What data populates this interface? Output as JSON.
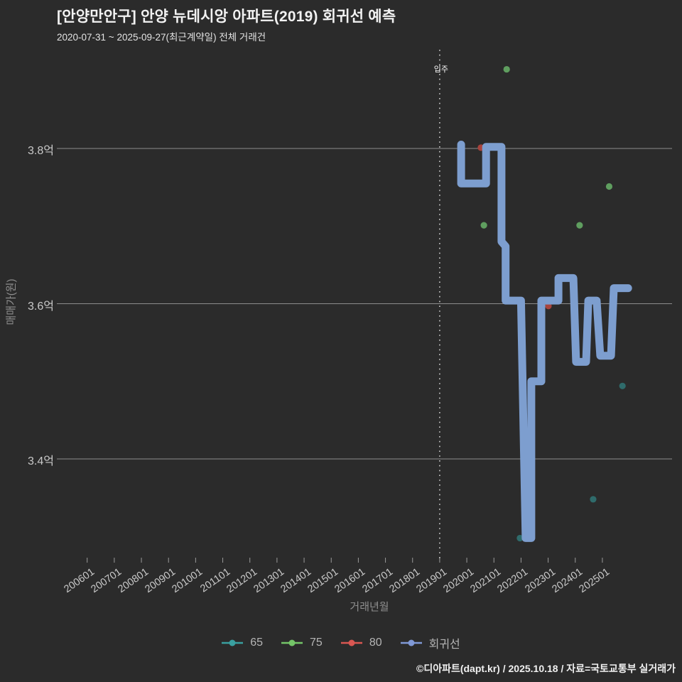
{
  "header": {
    "title": "[안양만안구] 안양 뉴데시앙 아파트(2019) 회귀선 예측",
    "subtitle": "2020-07-31 ~ 2025-09-27(최근계약일) 전체 거래건"
  },
  "footer": {
    "credit": "©디아파트(dapt.kr) / 2025.10.18 / 자료=국토교통부 실거래가"
  },
  "colors": {
    "background": "#2b2b2b",
    "grid_line": "#8c8c8c",
    "tick_mark": "#9a9a9a",
    "tick_label": "#c9c9c9",
    "axis_title": "#8f8f8f",
    "annotation_line": "#d0d0d0",
    "annotation_text": "#f5f5f5",
    "title_text": "#f2f2f2",
    "legend_text": "#b5b5b5"
  },
  "chart_data": {
    "type": "line",
    "title": "[안양만안구] 안양 뉴데시앙 아파트(2019) 회귀선 예측",
    "subtitle": "2020-07-31 ~ 2025-09-27(최근계약일) 전체 거래건",
    "xlabel": "거래년월",
    "ylabel": "매매가(원)",
    "grid": "horizontal-only",
    "legend_position": "bottom-center",
    "xlim_years": [
      2004.9,
      2027.6
    ],
    "ylim": [
      3.27,
      3.93
    ],
    "x_ticks": [
      {
        "label": "200601",
        "year": 2006
      },
      {
        "label": "200701",
        "year": 2007
      },
      {
        "label": "200801",
        "year": 2008
      },
      {
        "label": "200901",
        "year": 2009
      },
      {
        "label": "201001",
        "year": 2010
      },
      {
        "label": "201101",
        "year": 2011
      },
      {
        "label": "201201",
        "year": 2012
      },
      {
        "label": "201301",
        "year": 2013
      },
      {
        "label": "201401",
        "year": 2014
      },
      {
        "label": "201501",
        "year": 2015
      },
      {
        "label": "201601",
        "year": 2016
      },
      {
        "label": "201701",
        "year": 2017
      },
      {
        "label": "201801",
        "year": 2018
      },
      {
        "label": "201901",
        "year": 2019
      },
      {
        "label": "202001",
        "year": 2020
      },
      {
        "label": "202101",
        "year": 2021
      },
      {
        "label": "202201",
        "year": 2022
      },
      {
        "label": "202301",
        "year": 2023
      },
      {
        "label": "202401",
        "year": 2024
      },
      {
        "label": "202501",
        "year": 2025
      }
    ],
    "y_ticks": [
      {
        "label": "3.8억",
        "value": 3.8
      },
      {
        "label": "3.6억",
        "value": 3.6
      },
      {
        "label": "3.4억",
        "value": 3.4
      }
    ],
    "annotation": {
      "label": "입주",
      "x": 2019.0
    },
    "series": [
      {
        "name": "65",
        "type": "scatter",
        "color": "#2f6b6b",
        "legend_color": "#3aa0a0",
        "points": [
          [
            2021.96,
            3.298
          ],
          [
            2024.66,
            3.348
          ],
          [
            2025.74,
            3.494
          ]
        ]
      },
      {
        "name": "75",
        "type": "scatter",
        "color": "#5f9e5f",
        "legend_color": "#74c568",
        "points": [
          [
            2020.63,
            3.701
          ],
          [
            2021.47,
            3.902
          ],
          [
            2024.16,
            3.701
          ],
          [
            2025.25,
            3.751
          ]
        ]
      },
      {
        "name": "80",
        "type": "scatter",
        "color": "#a8433c",
        "legend_color": "#d95752",
        "points": [
          [
            2020.52,
            3.801
          ],
          [
            2023.01,
            3.597
          ]
        ]
      },
      {
        "name": "회귀선",
        "type": "step-line",
        "color": "#7d9ecf",
        "legend_color": "#8099d6",
        "points": [
          [
            2019.79,
            3.805
          ],
          [
            2019.79,
            3.755
          ],
          [
            2020.71,
            3.755
          ],
          [
            2020.71,
            3.802
          ],
          [
            2021.28,
            3.802
          ],
          [
            2021.28,
            3.68
          ],
          [
            2021.43,
            3.674
          ],
          [
            2021.43,
            3.604
          ],
          [
            2022.0,
            3.604
          ],
          [
            2022.17,
            3.298
          ],
          [
            2022.38,
            3.298
          ],
          [
            2022.38,
            3.5
          ],
          [
            2022.75,
            3.5
          ],
          [
            2022.75,
            3.604
          ],
          [
            2023.38,
            3.604
          ],
          [
            2023.38,
            3.633
          ],
          [
            2023.93,
            3.633
          ],
          [
            2024.03,
            3.525
          ],
          [
            2024.4,
            3.525
          ],
          [
            2024.48,
            3.604
          ],
          [
            2024.79,
            3.604
          ],
          [
            2024.92,
            3.533
          ],
          [
            2025.32,
            3.533
          ],
          [
            2025.42,
            3.62
          ],
          [
            2025.95,
            3.62
          ]
        ]
      }
    ]
  }
}
